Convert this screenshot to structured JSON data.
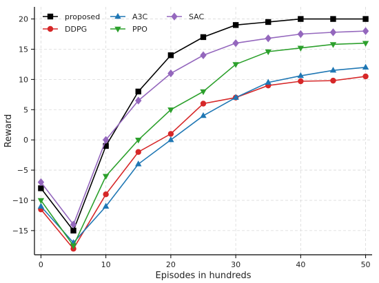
{
  "chart_data": {
    "type": "line",
    "title": "",
    "xlabel": "Episodes in hundreds",
    "ylabel": "Reward",
    "xlim": [
      -1,
      51
    ],
    "ylim": [
      -19,
      22
    ],
    "xticks": [
      0,
      10,
      20,
      30,
      40,
      50
    ],
    "yticks": [
      -15,
      -10,
      -5,
      0,
      5,
      10,
      15,
      20
    ],
    "grid": true,
    "legend_position": "top-left",
    "x": [
      0,
      5,
      10,
      15,
      20,
      25,
      30,
      35,
      40,
      45,
      50
    ],
    "series": [
      {
        "name": "proposed",
        "color": "#000000",
        "marker": "square",
        "values": [
          -8,
          -15,
          -1,
          8,
          14,
          17,
          19,
          19.5,
          20,
          20,
          20
        ]
      },
      {
        "name": "DDPG",
        "color": "#d62728",
        "marker": "circle",
        "values": [
          -11.5,
          -18,
          -9,
          -2,
          1,
          6,
          7,
          9,
          9.7,
          9.8,
          10.5
        ]
      },
      {
        "name": "A3C",
        "color": "#1f77b4",
        "marker": "triangle-up",
        "values": [
          -11,
          -17,
          -11,
          -4,
          0,
          4,
          7,
          9.5,
          10.6,
          11.5,
          12
        ]
      },
      {
        "name": "PPO",
        "color": "#2ca02c",
        "marker": "triangle-down",
        "values": [
          -10,
          -17.5,
          -6,
          0,
          5,
          8,
          12.5,
          14.6,
          15.2,
          15.8,
          16
        ]
      },
      {
        "name": "SAC",
        "color": "#9467bd",
        "marker": "diamond",
        "values": [
          -7,
          -14,
          0,
          6.5,
          11,
          14,
          16,
          16.8,
          17.5,
          17.8,
          18
        ]
      }
    ]
  }
}
